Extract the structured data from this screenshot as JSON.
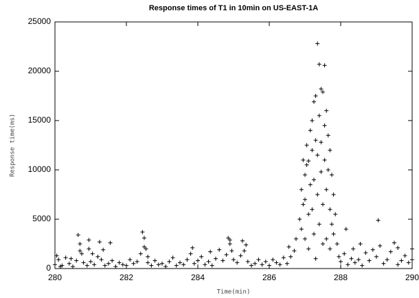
{
  "chart_data": {
    "type": "scatter",
    "title": "Response times of T1 in 10min on US-EAST-1A",
    "x_label": "Time(min)",
    "y_label": "Response time(ms)",
    "color": "#000000",
    "xlim": [
      280,
      290
    ],
    "xticks": [
      280,
      282,
      284,
      286,
      288,
      290
    ],
    "ylim": [
      0,
      25000
    ],
    "yticks": [
      0,
      5000,
      10000,
      15000,
      20000,
      25000
    ],
    "x": [
      280.0,
      280.1,
      280.2,
      280.3,
      280.4,
      280.5,
      280.6,
      280.7,
      280.8,
      280.9,
      281.0,
      281.1,
      281.2,
      281.3,
      281.4,
      281.5,
      281.6,
      281.7,
      281.8,
      281.9,
      282.0,
      282.1,
      282.2,
      282.3,
      282.4,
      282.5,
      282.6,
      282.7,
      282.8,
      282.9,
      283.0,
      283.1,
      283.2,
      283.3,
      283.4,
      283.5,
      283.6,
      283.7,
      283.8,
      283.9,
      284.0,
      284.1,
      284.2,
      284.3,
      284.4,
      284.5,
      284.6,
      284.7,
      284.8,
      284.9,
      285.0,
      285.1,
      285.2,
      285.3,
      285.4,
      285.5,
      285.6,
      285.7,
      285.8,
      285.9,
      286.0,
      286.1,
      286.2,
      286.3,
      286.4,
      286.5,
      286.6,
      286.7,
      288.0,
      288.1,
      288.2,
      288.3,
      288.4,
      288.5,
      288.6,
      288.7,
      288.8,
      288.9,
      289.0,
      289.1,
      289.2,
      289.3,
      289.4,
      289.5,
      289.6,
      289.7,
      289.8,
      289.9,
      290.0,
      280.65,
      280.7,
      280.75,
      280.05,
      280.15,
      280.45,
      281.25,
      281.35,
      280.95,
      280.95,
      281.55,
      281.05,
      282.45,
      282.5,
      282.55,
      282.6,
      283.85,
      284.35,
      284.85,
      284.9,
      284.95,
      285.25,
      285.35,
      286.55,
      286.75,
      286.85,
      286.9,
      286.9,
      286.95,
      286.95,
      287.0,
      287.0,
      287.0,
      287.05,
      287.05,
      287.1,
      287.1,
      287.1,
      287.15,
      287.15,
      287.2,
      287.2,
      287.2,
      287.25,
      287.25,
      287.25,
      287.3,
      287.3,
      287.3,
      287.35,
      287.35,
      287.35,
      287.4,
      287.4,
      287.4,
      287.45,
      287.45,
      287.45,
      287.5,
      287.5,
      287.5,
      287.55,
      287.55,
      287.55,
      287.6,
      287.6,
      287.6,
      287.65,
      287.65,
      287.7,
      287.7,
      287.7,
      287.75,
      287.75,
      287.8,
      287.8,
      287.85,
      287.9,
      287.95,
      288.15,
      288.35,
      289.05,
      289.6,
      290.0,
      288.55
    ],
    "values": [
      400,
      900,
      300,
      1100,
      500,
      200,
      800,
      1800,
      600,
      300,
      700,
      400,
      1200,
      900,
      300,
      500,
      800,
      200,
      600,
      400,
      300,
      900,
      500,
      700,
      1500,
      2200,
      600,
      300,
      800,
      400,
      500,
      200,
      700,
      1100,
      300,
      600,
      400,
      900,
      1500,
      500,
      800,
      1200,
      400,
      700,
      300,
      1000,
      1900,
      800,
      1400,
      2500,
      900,
      600,
      1300,
      1800,
      700,
      300,
      500,
      900,
      400,
      700,
      300,
      900,
      600,
      400,
      1100,
      500,
      1200,
      1800,
      700,
      1500,
      400,
      1000,
      600,
      900,
      300,
      1600,
      800,
      1900,
      1200,
      2300,
      500,
      900,
      1700,
      2600,
      400,
      800,
      1300,
      600,
      900,
      3400,
      2500,
      1500,
      1300,
      200,
      1000,
      2700,
      1900,
      2900,
      2000,
      2600,
      1500,
      3700,
      3100,
      2000,
      1200,
      2100,
      1700,
      3100,
      2900,
      1800,
      2800,
      2400,
      2200,
      3000,
      5000,
      8000,
      4000,
      11000,
      6500,
      9500,
      7000,
      3000,
      10500,
      12500,
      10900,
      5500,
      2000,
      14000,
      8500,
      15000,
      12000,
      6000,
      16900,
      9000,
      3500,
      17500,
      13000,
      1000,
      22800,
      11500,
      7500,
      20700,
      15500,
      4500,
      18200,
      12800,
      9800,
      17900,
      6500,
      2500,
      20600,
      14500,
      11000,
      16000,
      8000,
      3000,
      13500,
      10000,
      12000,
      6000,
      2000,
      9500,
      4500,
      7500,
      3500,
      5500,
      2500,
      1200,
      4000,
      2000,
      4900,
      2100,
      2000,
      2500
    ]
  }
}
